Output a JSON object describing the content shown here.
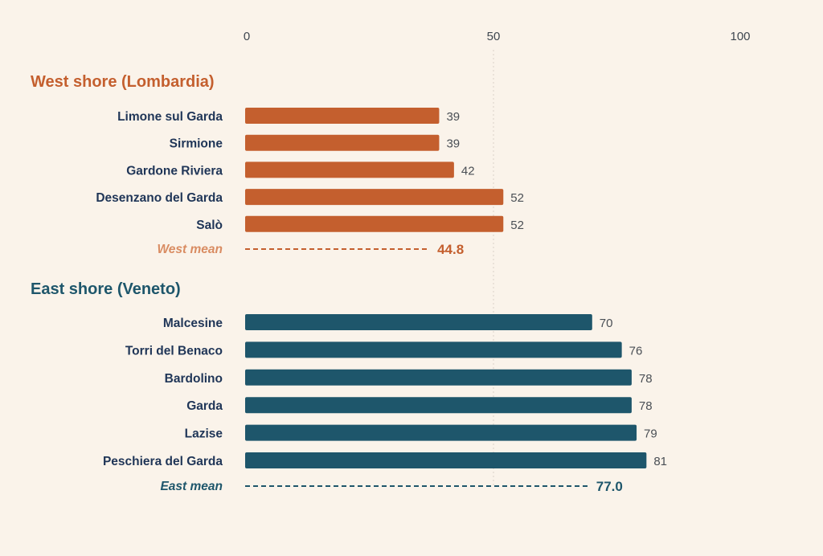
{
  "chart_data": {
    "type": "bar",
    "orientation": "horizontal",
    "xlim": [
      0,
      100
    ],
    "x_ticks": [
      0,
      50,
      100
    ],
    "grid": "vertical dotted line at 50",
    "groups": [
      {
        "title": "West shore (Lombardia)",
        "color": "#c45f2e",
        "mean_label_color": "#d98c62",
        "categories": [
          "Limone sul Garda",
          "Sirmione",
          "Gardone Riviera",
          "Desenzano del Garda",
          "Salò"
        ],
        "values": [
          39,
          39,
          42,
          52,
          52
        ],
        "mean_label": "West mean",
        "mean_value": "44.8"
      },
      {
        "title": "East shore (Veneto)",
        "color": "#1e566b",
        "mean_label_color": "#1e566b",
        "categories": [
          "Malcesine",
          "Torri del Benaco",
          "Bardolino",
          "Garda",
          "Lazise",
          "Peschiera del Garda"
        ],
        "values": [
          70,
          76,
          78,
          78,
          79,
          81
        ],
        "mean_label": "East mean",
        "mean_value": "77.0"
      }
    ]
  }
}
